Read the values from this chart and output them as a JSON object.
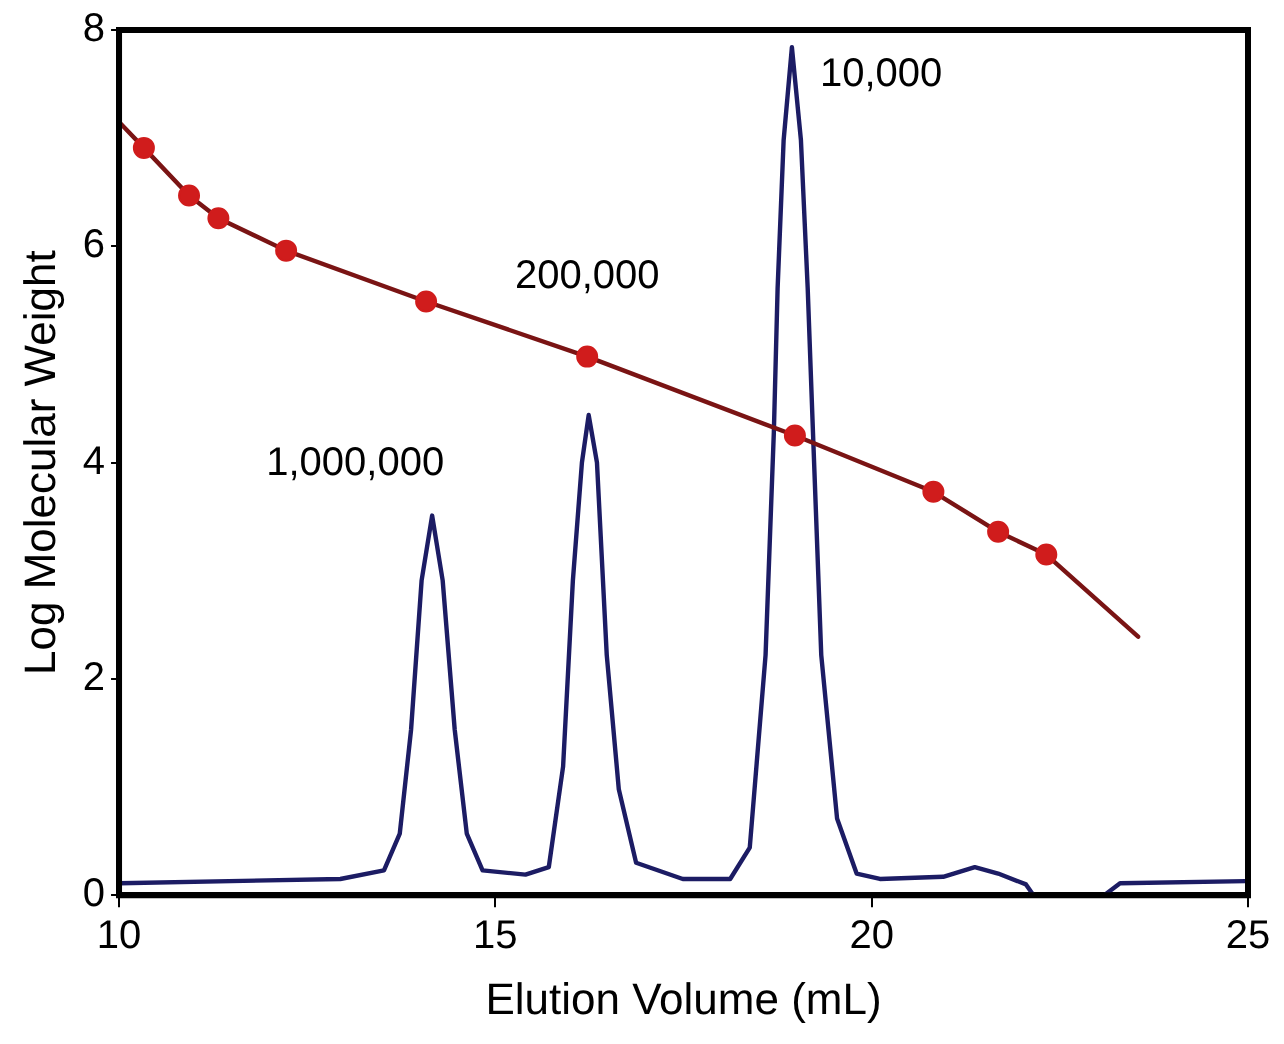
{
  "chart_data": {
    "type": "line",
    "xlabel": "Elution Volume (mL)",
    "ylabel": "Log Molecular Weight",
    "xlim": [
      10,
      25
    ],
    "xticks": [
      10,
      15,
      20,
      25
    ],
    "ylim": [
      0,
      8
    ],
    "yticks": [
      0,
      2,
      4,
      6,
      8
    ],
    "grid": false,
    "legend": false,
    "series": [
      {
        "type": "line",
        "color": "#1c1c64",
        "marker": "none",
        "x": [
          10.01,
          12.94,
          13.52,
          13.73,
          13.88,
          14.02,
          14.16,
          14.3,
          14.46,
          14.62,
          14.83,
          15.4,
          15.71,
          15.9,
          16.03,
          16.15,
          16.24,
          16.35,
          16.48,
          16.64,
          16.87,
          17.49,
          18.12,
          18.38,
          18.59,
          18.7,
          18.75,
          18.83,
          18.94,
          19.06,
          19.15,
          19.22,
          19.33,
          19.54,
          19.8,
          20.11,
          20.95,
          21.37,
          21.68,
          22.05,
          22.15,
          23.09,
          23.3,
          24.97
        ],
        "values": [
          0.11,
          0.15,
          0.23,
          0.57,
          1.53,
          2.91,
          3.51,
          2.91,
          1.53,
          0.57,
          0.23,
          0.19,
          0.26,
          1.19,
          2.91,
          4.0,
          4.44,
          4.0,
          2.22,
          0.98,
          0.3,
          0.15,
          0.15,
          0.44,
          2.22,
          4.28,
          5.61,
          6.98,
          7.84,
          6.98,
          5.61,
          4.28,
          2.22,
          0.71,
          0.2,
          0.15,
          0.17,
          0.26,
          0.2,
          0.1,
          0.0,
          0.0,
          0.11,
          0.13
        ]
      },
      {
        "type": "line",
        "color": "#7a1414",
        "marker": "none",
        "x": [
          10.0,
          10.33,
          10.93,
          11.32,
          12.22,
          14.08,
          16.22,
          18.98,
          20.82,
          21.68,
          22.32,
          23.54
        ],
        "values": [
          7.15,
          6.91,
          6.47,
          6.26,
          5.96,
          5.49,
          4.98,
          4.25,
          3.73,
          3.36,
          3.15,
          2.39
        ]
      },
      {
        "type": "scatter",
        "color": "#d01c1c",
        "marker": "circle",
        "x": [
          10.33,
          10.93,
          11.32,
          12.22,
          14.08,
          16.22,
          18.98,
          20.82,
          21.68,
          22.32
        ],
        "values": [
          6.91,
          6.47,
          6.26,
          5.96,
          5.49,
          4.98,
          4.25,
          3.73,
          3.36,
          3.15
        ]
      }
    ],
    "annotations": [
      {
        "text": "1,000,000",
        "x": 14.16,
        "y": 3.51
      },
      {
        "text": "200,000",
        "x": 16.22,
        "y": 4.98
      },
      {
        "text": "10,000",
        "x": 18.94,
        "y": 7.84
      }
    ]
  }
}
